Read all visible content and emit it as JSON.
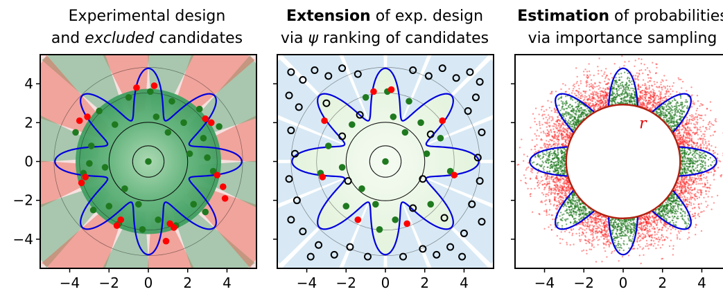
{
  "chart_data": [
    {
      "type": "scatter",
      "title_lines": [
        {
          "parts": [
            {
              "text": "Experimental design",
              "style": "normal"
            }
          ]
        },
        {
          "parts": [
            {
              "text": "and ",
              "style": "normal"
            },
            {
              "text": "excluded",
              "style": "italic"
            },
            {
              "text": " candidates",
              "style": "normal"
            }
          ]
        }
      ],
      "xlim": [
        -5.5,
        5.5
      ],
      "ylim": [
        -5.5,
        5.5
      ],
      "xticks": [
        -4,
        -2,
        0,
        2,
        4
      ],
      "yticks": [
        4,
        2,
        0,
        -2,
        -4
      ],
      "tick_labels_y": [
        "4",
        "2",
        "0",
        "−2",
        "−4"
      ],
      "tick_labels_x": [
        "−4",
        "−2",
        "0",
        "2",
        "4"
      ],
      "background": "#f6e1e0",
      "boundary_curve": {
        "shape": "r = 3.5 + 1.25*cos(8*theta)",
        "color": "#0000dd"
      },
      "series": [
        {
          "color": "#1f7a1f",
          "points": [
            [
              0,
              0
            ],
            [
              1.2,
              3.1
            ],
            [
              -1.0,
              3.3
            ],
            [
              2.8,
              1.2
            ],
            [
              -2.9,
              0.8
            ],
            [
              0.5,
              -3.0
            ],
            [
              -2.0,
              -2.3
            ],
            [
              2.3,
              -2.2
            ],
            [
              1.8,
              2.0
            ],
            [
              -1.7,
              1.9
            ],
            [
              3.3,
              -0.5
            ],
            [
              -3.3,
              -0.6
            ],
            [
              0.1,
              3.6
            ],
            [
              -0.3,
              -3.5
            ],
            [
              2.6,
              2.7
            ],
            [
              -2.5,
              2.6
            ],
            [
              2.9,
              -2.6
            ],
            [
              -2.8,
              -2.5
            ],
            [
              1.0,
              1.5
            ],
            [
              -1.2,
              -1.4
            ],
            [
              3.6,
              1.8
            ],
            [
              -3.7,
              1.5
            ],
            [
              1.4,
              -3.3
            ],
            [
              -1.5,
              -3.2
            ],
            [
              2.1,
              0.4
            ],
            [
              -2.2,
              -0.3
            ],
            [
              0.4,
              2.3
            ],
            [
              -0.5,
              -2.2
            ],
            [
              3.0,
              0.2
            ],
            [
              -3.0,
              -0.1
            ]
          ]
        },
        {
          "color": "#ff0000",
          "points": [
            [
              -0.6,
              3.8
            ],
            [
              0.3,
              3.9
            ],
            [
              -3.1,
              2.3
            ],
            [
              -3.5,
              2.1
            ],
            [
              2.9,
              2.2
            ],
            [
              3.2,
              2.0
            ],
            [
              -3.2,
              -0.8
            ],
            [
              -3.4,
              -1.1
            ],
            [
              3.5,
              -0.7
            ],
            [
              3.8,
              -1.3
            ],
            [
              3.9,
              -1.9
            ],
            [
              -1.4,
              -3.0
            ],
            [
              -1.6,
              -3.3
            ],
            [
              1.1,
              -3.2
            ],
            [
              1.3,
              -3.4
            ],
            [
              0.9,
              -4.1
            ]
          ]
        }
      ]
    },
    {
      "type": "scatter",
      "title_lines": [
        {
          "parts": [
            {
              "text": "Extension",
              "style": "bold"
            },
            {
              "text": " of exp. design",
              "style": "normal"
            }
          ]
        },
        {
          "parts": [
            {
              "text": "via ",
              "style": "normal"
            },
            {
              "text": "ψ",
              "style": "italic"
            },
            {
              "text": " ranking of candidates",
              "style": "normal"
            }
          ]
        }
      ],
      "xlim": [
        -5.5,
        5.5
      ],
      "ylim": [
        -5.5,
        5.5
      ],
      "xticks": [
        -4,
        -2,
        0,
        2,
        4
      ],
      "tick_labels_x": [
        "−4",
        "−2",
        "0",
        "2",
        "4"
      ],
      "background": "#ffffff",
      "boundary_curve": {
        "shape": "r = 3.5 + 1.25*cos(8*theta)",
        "color": "#0000dd"
      },
      "series": [
        {
          "color": "#1f7a1f",
          "points": [
            [
              0,
              0
            ],
            [
              1.2,
              3.1
            ],
            [
              -1.0,
              3.3
            ],
            [
              2.8,
              1.2
            ],
            [
              -2.9,
              0.8
            ],
            [
              0.5,
              -3.0
            ],
            [
              -2.0,
              -2.3
            ],
            [
              2.3,
              -2.2
            ],
            [
              1.8,
              2.0
            ],
            [
              -1.7,
              1.9
            ],
            [
              3.3,
              -0.5
            ],
            [
              -3.3,
              -0.6
            ],
            [
              0.1,
              3.6
            ],
            [
              -0.3,
              -3.5
            ],
            [
              1.0,
              1.5
            ],
            [
              -1.2,
              -1.4
            ],
            [
              2.1,
              0.4
            ],
            [
              -2.2,
              -0.3
            ],
            [
              0.4,
              2.3
            ],
            [
              -0.5,
              -2.2
            ]
          ]
        },
        {
          "color": "#ff0000",
          "points": [
            [
              -0.6,
              3.6
            ],
            [
              0.3,
              3.7
            ],
            [
              -3.1,
              2.1
            ],
            [
              2.9,
              2.1
            ],
            [
              -3.2,
              -0.8
            ],
            [
              3.5,
              -0.7
            ],
            [
              -1.4,
              -3.0
            ],
            [
              1.1,
              -3.2
            ]
          ]
        },
        {
          "color": "#000000",
          "marker": "open-circle",
          "points": [
            [
              -4.8,
              4.6
            ],
            [
              -4.2,
              4.2
            ],
            [
              -3.6,
              4.7
            ],
            [
              -2.9,
              4.4
            ],
            [
              -2.2,
              4.8
            ],
            [
              -1.4,
              4.5
            ],
            [
              1.4,
              4.7
            ],
            [
              2.2,
              4.4
            ],
            [
              2.9,
              4.8
            ],
            [
              3.6,
              4.3
            ],
            [
              4.3,
              4.6
            ],
            [
              4.8,
              4.1
            ],
            [
              -4.9,
              3.4
            ],
            [
              -4.4,
              2.8
            ],
            [
              4.6,
              3.3
            ],
            [
              4.2,
              2.6
            ],
            [
              -4.8,
              1.6
            ],
            [
              4.9,
              1.5
            ],
            [
              -4.6,
              0.4
            ],
            [
              4.7,
              0.2
            ],
            [
              -4.9,
              -0.9
            ],
            [
              4.8,
              -1.0
            ],
            [
              -4.5,
              -2.0
            ],
            [
              4.4,
              -2.2
            ],
            [
              -4.8,
              -3.0
            ],
            [
              4.9,
              -3.1
            ],
            [
              -4.2,
              -3.6
            ],
            [
              4.0,
              -3.7
            ],
            [
              -3.4,
              -4.3
            ],
            [
              3.3,
              -4.4
            ],
            [
              -2.6,
              -4.8
            ],
            [
              2.6,
              -4.8
            ],
            [
              -1.8,
              -4.4
            ],
            [
              1.9,
              -4.5
            ],
            [
              -0.9,
              -4.9
            ],
            [
              0.9,
              -4.9
            ],
            [
              -3.8,
              -4.9
            ],
            [
              3.9,
              -4.9
            ],
            [
              -2.2,
              1.3
            ],
            [
              2.3,
              1.4
            ],
            [
              -1.3,
              2.4
            ],
            [
              1.4,
              -2.4
            ],
            [
              -3.0,
              3.0
            ],
            [
              3.0,
              -2.9
            ],
            [
              -1.9,
              -1.0
            ],
            [
              1.9,
              -0.9
            ]
          ]
        }
      ]
    },
    {
      "type": "scatter",
      "title_lines": [
        {
          "parts": [
            {
              "text": "Estimation",
              "style": "bold"
            },
            {
              "text": " of probabilities",
              "style": "normal"
            }
          ]
        },
        {
          "parts": [
            {
              "text": "via importance sampling",
              "style": "normal"
            }
          ]
        }
      ],
      "xlim": [
        -5.5,
        5.5
      ],
      "ylim": [
        -5.5,
        5.5
      ],
      "xticks": [
        -4,
        -2,
        0,
        2,
        4
      ],
      "tick_labels_x": [
        "−4",
        "−2",
        "0",
        "2",
        "4"
      ],
      "background": "#ffffff",
      "boundary_curve": {
        "shape": "r = 3.5 + 1.25*cos(8*theta)",
        "color": "#0000dd"
      },
      "inner_circle": {
        "radius": 2.9,
        "edge_color": "#b02010",
        "label": "r"
      },
      "series": [
        {
          "name": "",
          "color": "#1f7a1f",
          "description_region": "annulus 2.9 < r < boundary"
        },
        {
          "name": "",
          "color": "#ff0000",
          "description_region": "outside boundary"
        }
      ]
    }
  ]
}
